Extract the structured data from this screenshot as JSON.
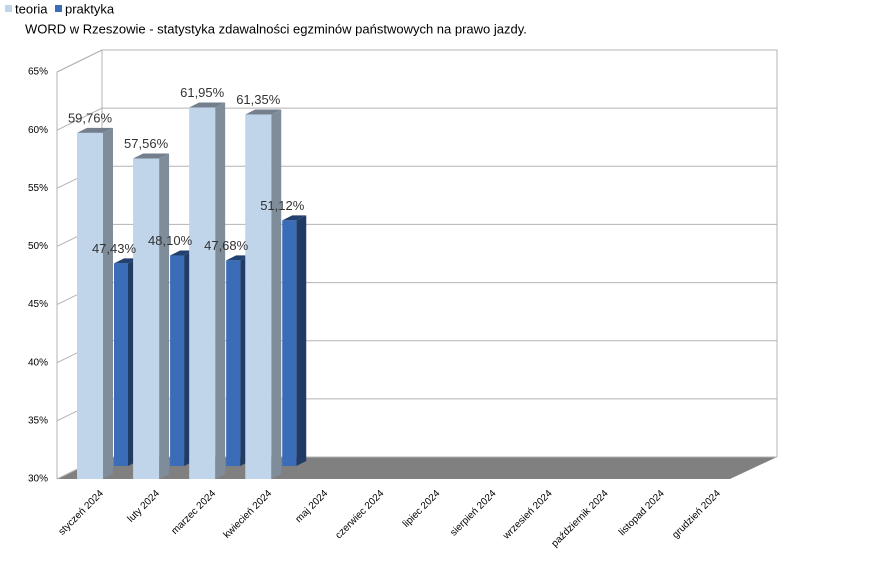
{
  "chart_data": {
    "type": "bar3d",
    "title": "WORD w Rzeszowie - statystyka zdawalności egzminów państwowych na prawo jazdy.",
    "categories": [
      "styczeń 2024",
      "luty 2024",
      "marzec 2024",
      "kwiecień 2024",
      "maj 2024",
      "czerwiec 2024",
      "lipiec 2024",
      "sierpień 2024",
      "wrzesień 2024",
      "październik 2024",
      "listopad 2024",
      "grudzień 2024"
    ],
    "series": [
      {
        "name": "teoria",
        "color": "#c0d4ea",
        "values": [
          59.76,
          57.56,
          61.95,
          61.35,
          null,
          null,
          null,
          null,
          null,
          null,
          null,
          null
        ],
        "value_labels": [
          "59,76%",
          "57,56%",
          "61,95%",
          "61,35%",
          null,
          null,
          null,
          null,
          null,
          null,
          null,
          null
        ]
      },
      {
        "name": "praktyka",
        "color": "#3a6cb7",
        "values": [
          47.43,
          48.1,
          47.68,
          51.12,
          null,
          null,
          null,
          null,
          null,
          null,
          null,
          null
        ],
        "value_labels": [
          "47,43%",
          "48,10%",
          "47,68%",
          "51,12%",
          null,
          null,
          null,
          null,
          null,
          null,
          null,
          null
        ]
      }
    ],
    "ylim": [
      30,
      65
    ],
    "yticks": [
      {
        "value": 30,
        "label": "30%"
      },
      {
        "value": 35,
        "label": "35%"
      },
      {
        "value": 40,
        "label": "40%"
      },
      {
        "value": 45,
        "label": "45%"
      },
      {
        "value": 50,
        "label": "50%"
      },
      {
        "value": 55,
        "label": "55%"
      },
      {
        "value": 60,
        "label": "60%"
      },
      {
        "value": 65,
        "label": "65%"
      }
    ],
    "grid": true
  }
}
